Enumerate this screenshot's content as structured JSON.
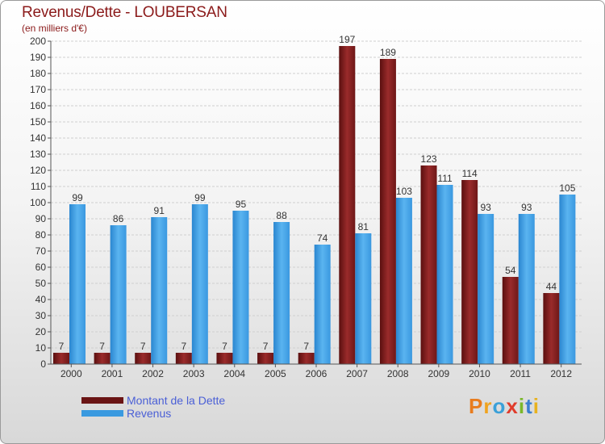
{
  "chart_data": {
    "type": "bar",
    "title": "Revenus/Dette - LOUBERSAN",
    "subtitle": "(en milliers d'€)",
    "categories": [
      "2000",
      "2001",
      "2002",
      "2003",
      "2004",
      "2005",
      "2006",
      "2007",
      "2008",
      "2009",
      "2010",
      "2011",
      "2012"
    ],
    "series": [
      {
        "name": "Montant de la Dette",
        "color": "#7a1c1c",
        "values": [
          7,
          7,
          7,
          7,
          7,
          7,
          7,
          197,
          189,
          123,
          114,
          54,
          44
        ]
      },
      {
        "name": "Revenus",
        "color": "#3a9ae0",
        "values": [
          99,
          86,
          91,
          99,
          95,
          88,
          74,
          81,
          103,
          111,
          93,
          93,
          105
        ]
      }
    ],
    "ylim": [
      0,
      200
    ],
    "ytick_step": 10,
    "grid": true,
    "legend_position": "bottom-left"
  },
  "brand": {
    "text": "Proxiti",
    "letters": [
      {
        "char": "P",
        "color": "#e87c1e"
      },
      {
        "char": "r",
        "color": "#f0a31e"
      },
      {
        "char": "o",
        "color": "#3aa0d8"
      },
      {
        "char": "x",
        "color": "#e03c2c"
      },
      {
        "char": "i",
        "color": "#7ab82a"
      },
      {
        "char": "t",
        "color": "#3a7fd0"
      },
      {
        "char": "i",
        "color": "#e8b21e"
      }
    ]
  }
}
